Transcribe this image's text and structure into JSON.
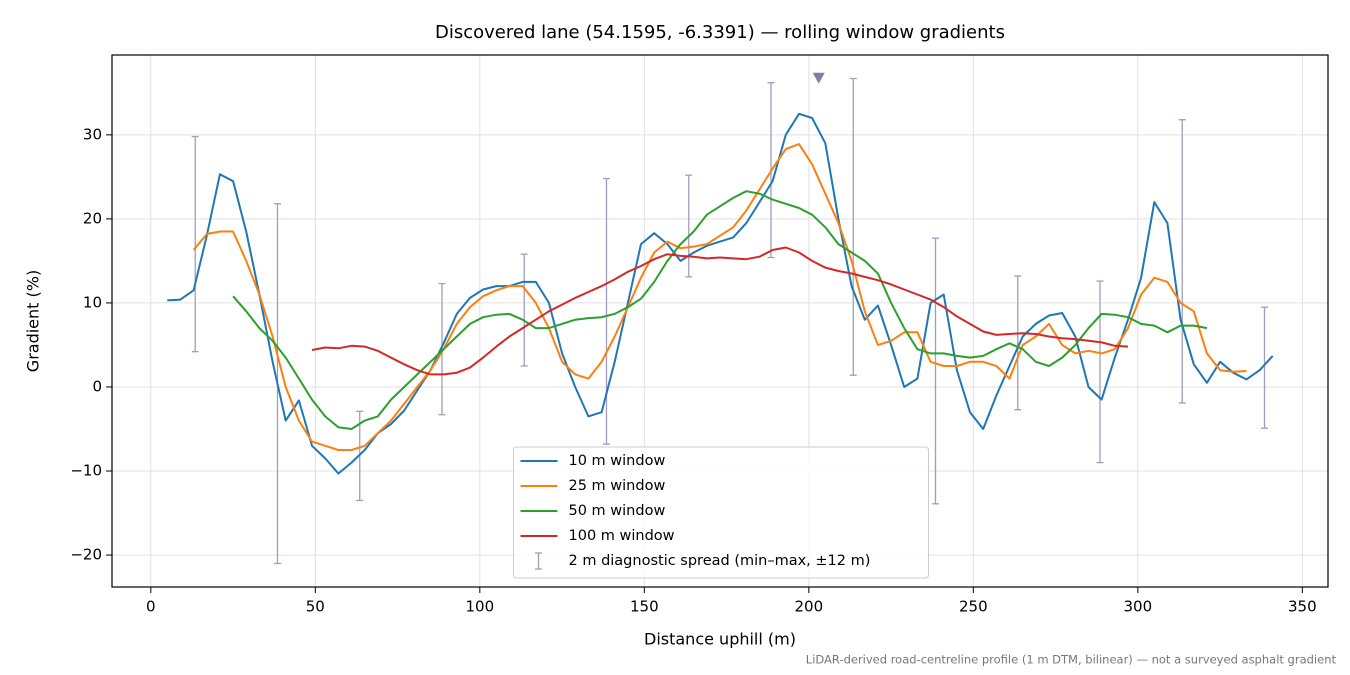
{
  "chart_data": {
    "type": "line",
    "title": "Discovered lane (54.1595, -6.3391) — rolling window gradients",
    "x_label": "Distance uphill (m)",
    "y_label": "Gradient (%)",
    "footnote": "LiDAR-derived road-centreline profile (1 m DTM, bilinear) — not a surveyed asphalt gradient",
    "xlim": [
      -11.8,
      357.8
    ],
    "ylim": [
      -23.8,
      39.5
    ],
    "xticks": [
      0,
      50,
      100,
      150,
      200,
      250,
      300,
      350
    ],
    "yticks": [
      {
        "value": -20,
        "label": "−20"
      },
      {
        "value": -10,
        "label": "−10"
      },
      0,
      10,
      20,
      30
    ],
    "grid": true,
    "legend": "lower center",
    "x": [
      5,
      9,
      13,
      17,
      21,
      25,
      29,
      33,
      37,
      41,
      45,
      49,
      53,
      57,
      61,
      65,
      69,
      73,
      77,
      81,
      85,
      89,
      93,
      97,
      101,
      105,
      109,
      113,
      117,
      121,
      125,
      129,
      133,
      137,
      141,
      145,
      149,
      153,
      157,
      161,
      165,
      169,
      173,
      177,
      181,
      185,
      189,
      193,
      197,
      201,
      205,
      209,
      213,
      217,
      221,
      225,
      229,
      233,
      237,
      241,
      245,
      249,
      253,
      257,
      261,
      265,
      269,
      273,
      277,
      281,
      285,
      289,
      293,
      297,
      301,
      305,
      309,
      313,
      317,
      321,
      325,
      329,
      333,
      337,
      341
    ],
    "series": [
      {
        "name": "10 m window",
        "color": "#1f77b4",
        "values": [
          10.3,
          10.4,
          11.5,
          18,
          25.3,
          24.5,
          18.5,
          11,
          3,
          -4,
          -1.6,
          -7,
          -8.5,
          -10.3,
          -9,
          -7.5,
          -5.5,
          -4.4,
          -2.8,
          -0.4,
          2,
          5.2,
          8.7,
          10.6,
          11.6,
          12,
          12,
          12.5,
          12.5,
          10,
          4,
          0,
          -3.5,
          -3,
          3,
          10,
          17,
          18.3,
          17,
          15,
          16,
          16.8,
          17.3,
          17.8,
          19.5,
          22,
          24.5,
          30,
          32.5,
          32,
          29,
          20,
          12,
          8,
          9.7,
          5,
          0,
          1,
          10,
          11,
          2,
          -3,
          -5,
          -1,
          2.5,
          6,
          7.5,
          8.5,
          8.8,
          6,
          0,
          -1.5,
          3.5,
          8,
          13,
          22,
          19.5,
          8,
          2.7,
          0.5,
          3,
          1.7,
          0.9,
          2,
          3.7
        ]
      },
      {
        "name": "25 m window",
        "color": "#ff7f0e",
        "values": [
          null,
          null,
          16.3,
          18.2,
          18.5,
          18.5,
          15,
          11,
          6,
          0,
          -4,
          -6.5,
          -7,
          -7.5,
          -7.5,
          -7,
          -5.5,
          -4,
          -2,
          0,
          2,
          4.5,
          7.5,
          9.5,
          10.8,
          11.5,
          12,
          12,
          10,
          7,
          3,
          1.5,
          1,
          3,
          6,
          9.5,
          13,
          16,
          17.3,
          16.5,
          16.7,
          17,
          18,
          19,
          21,
          23.5,
          26,
          28.3,
          28.9,
          26.5,
          23,
          19.5,
          15,
          9,
          5,
          5.5,
          6.5,
          6.5,
          3,
          2.5,
          2.5,
          3,
          3,
          2.5,
          1,
          5,
          6,
          7.5,
          5,
          4,
          4.3,
          4,
          4.5,
          7,
          11,
          13,
          12.5,
          10,
          9,
          4,
          2,
          1.8,
          1.9,
          null,
          null
        ]
      },
      {
        "name": "50 m window",
        "color": "#2ca02c",
        "values": [
          null,
          null,
          null,
          null,
          null,
          10.8,
          9,
          7,
          5.5,
          3.5,
          1,
          -1.5,
          -3.5,
          -4.8,
          -5,
          -4,
          -3.5,
          -1.5,
          0,
          1.5,
          3,
          4.5,
          6,
          7.5,
          8.3,
          8.6,
          8.7,
          8,
          7,
          7,
          7.5,
          8,
          8.2,
          8.3,
          8.7,
          9.5,
          10.5,
          12.5,
          15,
          17,
          18.5,
          20.5,
          21.5,
          22.5,
          23.3,
          23,
          22.3,
          21.8,
          21.3,
          20.5,
          19,
          17,
          16,
          15,
          13.5,
          10,
          7,
          4.5,
          4,
          4,
          3.7,
          3.5,
          3.7,
          4.5,
          5.2,
          4.5,
          3,
          2.5,
          3.5,
          5,
          7,
          8.7,
          8.6,
          8.3,
          7.5,
          7.3,
          6.5,
          7.3,
          7.3,
          7,
          null,
          null,
          null,
          null,
          null
        ]
      },
      {
        "name": "100 m window",
        "color": "#d62728",
        "values": [
          null,
          null,
          null,
          null,
          null,
          null,
          null,
          null,
          null,
          null,
          null,
          4.4,
          4.7,
          4.6,
          4.9,
          4.8,
          4.3,
          3.5,
          2.7,
          2,
          1.5,
          1.5,
          1.7,
          2.3,
          3.5,
          4.8,
          6,
          7,
          8,
          9,
          9.8,
          10.6,
          11.3,
          12,
          12.8,
          13.7,
          14.4,
          15.2,
          15.8,
          15.6,
          15.5,
          15.3,
          15.4,
          15.3,
          15.2,
          15.5,
          16.3,
          16.6,
          16,
          15,
          14.2,
          13.8,
          13.5,
          13.1,
          12.7,
          12.2,
          11.6,
          11,
          10.4,
          9.5,
          8.4,
          7.5,
          6.6,
          6.2,
          6.3,
          6.4,
          6.3,
          6,
          5.8,
          5.7,
          5.5,
          5.3,
          4.9,
          4.8,
          null,
          null,
          null,
          null,
          null,
          null,
          null,
          null,
          null,
          null,
          null
        ]
      }
    ],
    "errorbars": {
      "name": "2 m diagnostic spread (min–max, ±12 m)",
      "color": "#a09cc0",
      "x": [
        13.5,
        38.5,
        63.5,
        88.5,
        113.5,
        138.5,
        163.5,
        188.5,
        213.5,
        238.5,
        263.5,
        288.5,
        313.5,
        338.5
      ],
      "min": [
        4.2,
        -21,
        -13.5,
        -3.3,
        2.5,
        -6.8,
        13.1,
        15.4,
        1.4,
        -13.9,
        -2.7,
        -9,
        -1.9,
        -4.9
      ],
      "max": [
        29.8,
        21.8,
        -2.9,
        12.3,
        15.8,
        24.8,
        25.2,
        36.2,
        36.7,
        17.7,
        13.2,
        12.6,
        31.8,
        9.5
      ]
    },
    "marker": {
      "x": 203,
      "y": 36.8,
      "color": "#8878a8"
    }
  }
}
